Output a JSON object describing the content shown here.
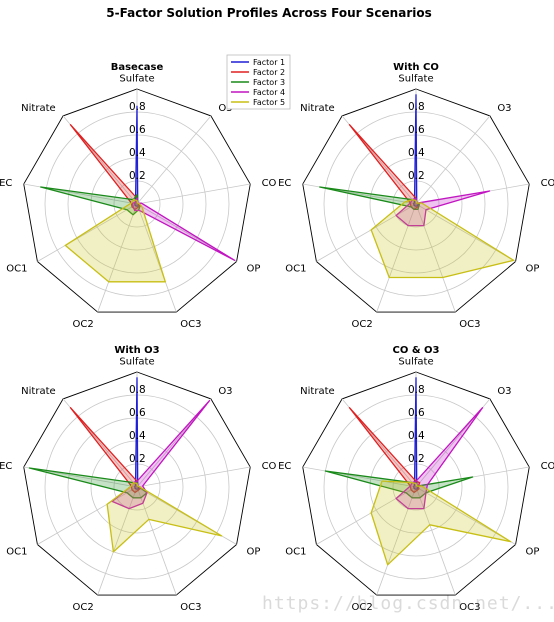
{
  "figure": {
    "title": "5-Factor Solution Profiles Across Four Scenarios"
  },
  "legend": {
    "placement": "top-center",
    "entries": [
      {
        "label": "Factor 1",
        "color": "#1f1fd6"
      },
      {
        "label": "Factor 2",
        "color": "#e02020"
      },
      {
        "label": "Factor 3",
        "color": "#1a8a1a"
      },
      {
        "label": "Factor 4",
        "color": "#c214c2"
      },
      {
        "label": "Factor 5",
        "color": "#c8bf14"
      }
    ]
  },
  "watermark": "https://blog.csdn.net/... 知乎 @广成子",
  "chart_data": [
    {
      "type": "radar",
      "title": "Basecase",
      "axes": [
        "Sulfate",
        "O3",
        "CO",
        "OP",
        "OC3",
        "OC2",
        "OC1",
        "EC",
        "Nitrate"
      ],
      "rlim": [
        0,
        1.0
      ],
      "rticks": [
        0.2,
        0.4,
        0.6,
        0.8
      ],
      "grid": true,
      "series": [
        {
          "name": "Factor 1",
          "values": [
            0.85,
            0.01,
            0.01,
            0.02,
            0.02,
            0.02,
            0.02,
            0.02,
            0.02
          ]
        },
        {
          "name": "Factor 2",
          "values": [
            0.05,
            0.01,
            0.01,
            0.02,
            0.03,
            0.05,
            0.05,
            0.05,
            0.9
          ]
        },
        {
          "name": "Factor 3",
          "values": [
            0.08,
            0.01,
            0.02,
            0.03,
            0.05,
            0.1,
            0.1,
            0.85,
            0.05
          ]
        },
        {
          "name": "Factor 4",
          "values": [
            0.05,
            0.01,
            0.04,
            0.98,
            0.06,
            0.06,
            0.04,
            0.04,
            0.02
          ]
        },
        {
          "name": "Factor 5",
          "values": [
            0.03,
            0.01,
            0.02,
            0.05,
            0.72,
            0.72,
            0.72,
            0.05,
            0.05
          ]
        }
      ]
    },
    {
      "type": "radar",
      "title": "With CO",
      "axes": [
        "Sulfate",
        "O3",
        "CO",
        "OP",
        "OC3",
        "OC2",
        "OC1",
        "EC",
        "Nitrate"
      ],
      "rlim": [
        0,
        1.0
      ],
      "rticks": [
        0.2,
        0.4,
        0.6,
        0.8
      ],
      "grid": true,
      "series": [
        {
          "name": "Factor 1",
          "values": [
            0.95,
            0.01,
            0.02,
            0.02,
            0.02,
            0.02,
            0.02,
            0.02,
            0.02
          ]
        },
        {
          "name": "Factor 2",
          "values": [
            0.05,
            0.01,
            0.03,
            0.03,
            0.03,
            0.05,
            0.05,
            0.05,
            0.9
          ]
        },
        {
          "name": "Factor 3",
          "values": [
            0.05,
            0.01,
            0.03,
            0.03,
            0.05,
            0.05,
            0.05,
            0.85,
            0.05
          ]
        },
        {
          "name": "Factor 4",
          "values": [
            0.05,
            0.01,
            0.65,
            0.1,
            0.2,
            0.2,
            0.2,
            0.05,
            0.05
          ]
        },
        {
          "name": "Factor 5",
          "values": [
            0.03,
            0.01,
            0.05,
            0.98,
            0.68,
            0.68,
            0.45,
            0.1,
            0.05
          ]
        }
      ]
    },
    {
      "type": "radar",
      "title": "With O3",
      "axes": [
        "Sulfate",
        "O3",
        "CO",
        "OP",
        "OC3",
        "OC2",
        "OC1",
        "EC",
        "Nitrate"
      ],
      "rlim": [
        0,
        1.0
      ],
      "rticks": [
        0.2,
        0.4,
        0.6,
        0.8
      ],
      "grid": true,
      "series": [
        {
          "name": "Factor 1",
          "values": [
            0.95,
            0.01,
            0.01,
            0.02,
            0.02,
            0.02,
            0.02,
            0.02,
            0.02
          ]
        },
        {
          "name": "Factor 2",
          "values": [
            0.05,
            0.01,
            0.02,
            0.03,
            0.03,
            0.05,
            0.05,
            0.05,
            0.9
          ]
        },
        {
          "name": "Factor 3",
          "values": [
            0.05,
            0.01,
            0.02,
            0.1,
            0.1,
            0.1,
            0.1,
            0.95,
            0.05
          ]
        },
        {
          "name": "Factor 4",
          "values": [
            0.05,
            0.98,
            0.05,
            0.1,
            0.15,
            0.2,
            0.25,
            0.05,
            0.05
          ]
        },
        {
          "name": "Factor 5",
          "values": [
            0.03,
            0.01,
            0.02,
            0.85,
            0.3,
            0.6,
            0.3,
            0.05,
            0.05
          ]
        }
      ]
    },
    {
      "type": "radar",
      "title": "CO & O3",
      "axes": [
        "Sulfate",
        "O3",
        "CO",
        "OP",
        "OC3",
        "OC2",
        "OC1",
        "EC",
        "Nitrate"
      ],
      "rlim": [
        0,
        1.0
      ],
      "rticks": [
        0.2,
        0.4,
        0.6,
        0.8
      ],
      "grid": true,
      "series": [
        {
          "name": "Factor 1",
          "values": [
            0.95,
            0.01,
            0.01,
            0.02,
            0.02,
            0.02,
            0.02,
            0.02,
            0.02
          ]
        },
        {
          "name": "Factor 2",
          "values": [
            0.05,
            0.05,
            0.02,
            0.03,
            0.03,
            0.05,
            0.05,
            0.05,
            0.9
          ]
        },
        {
          "name": "Factor 3",
          "values": [
            0.05,
            0.01,
            0.5,
            0.1,
            0.1,
            0.1,
            0.1,
            0.8,
            0.05
          ]
        },
        {
          "name": "Factor 4",
          "values": [
            0.05,
            0.9,
            0.1,
            0.1,
            0.2,
            0.2,
            0.2,
            0.05,
            0.05
          ]
        },
        {
          "name": "Factor 5",
          "values": [
            0.03,
            0.01,
            0.05,
            0.95,
            0.35,
            0.72,
            0.45,
            0.3,
            0.05
          ]
        }
      ]
    }
  ]
}
